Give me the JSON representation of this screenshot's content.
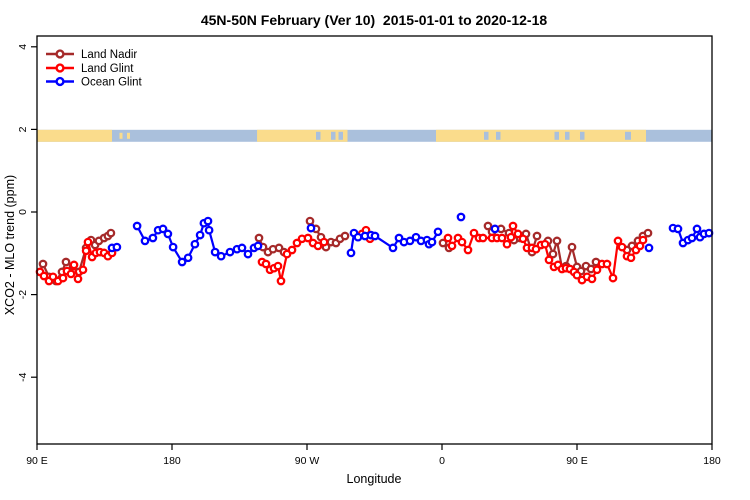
{
  "title": "45N-50N February (Ver 10)  2015-01-01 to 2020-12-18",
  "chart_data": {
    "type": "line",
    "title": "45N-50N February (Ver 10)  2015-01-01 to 2020-12-18",
    "xlabel": "Longitude",
    "ylabel": "XCO2 - MLO trend (ppm)",
    "x_axis": {
      "note": "x measured in degrees eastward from 90E; axis wraps 90E>180>90W>0>90E>180, total span 450 deg",
      "range_deg": [
        0,
        450
      ],
      "ticks": [
        {
          "deg": 0,
          "label": "90 E"
        },
        {
          "deg": 90,
          "label": "180"
        },
        {
          "deg": 180,
          "label": "90 W"
        },
        {
          "deg": 270,
          "label": "0"
        },
        {
          "deg": 360,
          "label": "90 E"
        },
        {
          "deg": 450,
          "label": "180"
        }
      ]
    },
    "y_axis": {
      "range": [
        -5.7,
        4.3
      ],
      "ticks": [
        4,
        2,
        0,
        -2,
        -4
      ],
      "grid": false
    },
    "legend": {
      "position": "top-left",
      "entries": [
        "Land Nadir",
        "Land Glint",
        "Ocean Glint"
      ]
    },
    "series": [
      {
        "name": "Land Nadir",
        "color": "#A52A2A",
        "segments": [
          [
            [
              4,
              -1.26
            ],
            [
              8,
              -1.57
            ],
            [
              12.7,
              -1.67
            ],
            [
              16.7,
              -1.45
            ],
            [
              19.3,
              -1.21
            ],
            [
              24,
              -1.31
            ],
            [
              28,
              -1.45
            ],
            [
              32.7,
              -0.87
            ],
            [
              36,
              -0.68
            ],
            [
              38.7,
              -0.8
            ],
            [
              41.3,
              -0.7
            ],
            [
              44.7,
              -0.63
            ],
            [
              47.3,
              -0.58
            ],
            [
              49.3,
              -0.51
            ]
          ],
          [
            [
              148,
              -0.63
            ],
            [
              150.7,
              -0.85
            ],
            [
              154,
              -0.97
            ],
            [
              157.3,
              -0.9
            ],
            [
              161.3,
              -0.87
            ],
            [
              164.7,
              -0.97
            ]
          ],
          [
            [
              182,
              -0.22
            ],
            [
              186,
              -0.41
            ],
            [
              189.3,
              -0.61
            ],
            [
              192.7,
              -0.85
            ],
            [
              196,
              -0.73
            ],
            [
              199.3,
              -0.75
            ],
            [
              202,
              -0.65
            ],
            [
              205.3,
              -0.58
            ]
          ],
          [
            [
              270.7,
              -0.75
            ],
            [
              274.7,
              -0.87
            ]
          ],
          [
            [
              300.7,
              -0.34
            ],
            [
              303.3,
              -0.48
            ],
            [
              309.3,
              -0.41
            ],
            [
              314.7,
              -0.51
            ],
            [
              318,
              -0.68
            ],
            [
              322,
              -0.63
            ],
            [
              326,
              -0.53
            ],
            [
              330,
              -0.97
            ],
            [
              333.3,
              -0.58
            ]
          ],
          [
            [
              340.7,
              -0.7
            ],
            [
              344,
              -1.02
            ],
            [
              346.7,
              -0.7
            ],
            [
              350,
              -1.36
            ],
            [
              352.7,
              -1.31
            ],
            [
              356.7,
              -0.85
            ],
            [
              360,
              -1.33
            ],
            [
              362.7,
              -1.43
            ],
            [
              366,
              -1.31
            ],
            [
              369.3,
              -1.38
            ],
            [
              372.7,
              -1.21
            ]
          ],
          [
            [
              393.3,
              -0.92
            ],
            [
              396.7,
              -0.82
            ],
            [
              400.7,
              -0.7
            ],
            [
              404,
              -0.58
            ],
            [
              407.3,
              -0.51
            ]
          ]
        ]
      },
      {
        "name": "Land Glint",
        "color": "#FF0000",
        "segments": [
          [
            [
              2,
              -1.45
            ],
            [
              4.7,
              -1.55
            ],
            [
              8,
              -1.67
            ],
            [
              10.7,
              -1.57
            ],
            [
              14,
              -1.67
            ],
            [
              17.3,
              -1.6
            ],
            [
              20,
              -1.43
            ],
            [
              22.7,
              -1.5
            ],
            [
              24.7,
              -1.28
            ],
            [
              27.3,
              -1.62
            ],
            [
              30.7,
              -1.4
            ],
            [
              32.7,
              -0.94
            ],
            [
              34,
              -0.73
            ],
            [
              36.7,
              -1.09
            ],
            [
              39.3,
              -0.99
            ],
            [
              42,
              -0.97
            ],
            [
              44.7,
              -0.99
            ],
            [
              47.3,
              -1.07
            ],
            [
              50,
              -0.99
            ]
          ],
          [
            [
              150,
              -1.21
            ],
            [
              152.7,
              -1.26
            ],
            [
              155.3,
              -1.4
            ],
            [
              158,
              -1.36
            ],
            [
              160.7,
              -1.31
            ],
            [
              162.7,
              -1.67
            ],
            [
              166.7,
              -1.02
            ],
            [
              170,
              -0.92
            ],
            [
              173.3,
              -0.75
            ],
            [
              176.7,
              -0.65
            ],
            [
              180.7,
              -0.63
            ],
            [
              184,
              -0.75
            ],
            [
              187.3,
              -0.82
            ],
            [
              191.3,
              -0.73
            ]
          ],
          [
            [
              216.7,
              -0.53
            ],
            [
              219.3,
              -0.44
            ],
            [
              222,
              -0.65
            ]
          ],
          [
            [
              274,
              -0.63
            ],
            [
              276.7,
              -0.82
            ],
            [
              280.7,
              -0.63
            ],
            [
              283.3,
              -0.73
            ],
            [
              287.3,
              -0.92
            ],
            [
              291.3,
              -0.51
            ],
            [
              294.7,
              -0.63
            ],
            [
              297.3,
              -0.63
            ],
            [
              303.3,
              -0.63
            ],
            [
              306.7,
              -0.63
            ],
            [
              310,
              -0.63
            ],
            [
              313.3,
              -0.78
            ],
            [
              316,
              -0.61
            ],
            [
              317.3,
              -0.34
            ],
            [
              320.7,
              -0.53
            ],
            [
              324,
              -0.65
            ],
            [
              326.7,
              -0.87
            ],
            [
              330,
              -0.87
            ],
            [
              332.7,
              -0.9
            ],
            [
              336,
              -0.8
            ],
            [
              338.7,
              -0.78
            ],
            [
              341.3,
              -1.16
            ],
            [
              344.7,
              -1.33
            ],
            [
              347.3,
              -1.28
            ],
            [
              350,
              -1.38
            ],
            [
              352.7,
              -1.36
            ],
            [
              355.3,
              -1.38
            ],
            [
              358,
              -1.45
            ],
            [
              360,
              -1.53
            ],
            [
              363.3,
              -1.65
            ],
            [
              366.7,
              -1.57
            ],
            [
              370,
              -1.62
            ],
            [
              373.3,
              -1.4
            ],
            [
              376.7,
              -1.26
            ],
            [
              380,
              -1.26
            ],
            [
              384,
              -1.6
            ],
            [
              387.3,
              -0.7
            ],
            [
              390,
              -0.85
            ],
            [
              393.3,
              -1.07
            ],
            [
              396,
              -1.11
            ],
            [
              399.3,
              -0.92
            ],
            [
              402,
              -0.82
            ],
            [
              404,
              -0.68
            ]
          ]
        ]
      },
      {
        "name": "Ocean Glint",
        "color": "#0000FF",
        "segments": [
          [
            [
              50,
              -0.87
            ],
            [
              53.3,
              -0.85
            ]
          ],
          [
            [
              66.7,
              -0.34
            ],
            [
              72,
              -0.7
            ],
            [
              77.3,
              -0.63
            ],
            [
              80.7,
              -0.44
            ],
            [
              84,
              -0.41
            ],
            [
              87.3,
              -0.53
            ],
            [
              90.7,
              -0.85
            ],
            [
              96.7,
              -1.21
            ],
            [
              100.7,
              -1.11
            ],
            [
              105.3,
              -0.78
            ],
            [
              108.7,
              -0.56
            ],
            [
              111.3,
              -0.27
            ],
            [
              114,
              -0.22
            ],
            [
              114.7,
              -0.44
            ],
            [
              118.7,
              -0.97
            ],
            [
              122.7,
              -1.07
            ],
            [
              128.7,
              -0.97
            ],
            [
              133.3,
              -0.9
            ],
            [
              136.7,
              -0.87
            ],
            [
              140.7,
              -1.02
            ],
            [
              144.7,
              -0.87
            ],
            [
              147.3,
              -0.82
            ]
          ],
          [
            [
              182.7,
              -0.39
            ]
          ],
          [
            [
              209.3,
              -0.99
            ],
            [
              211.3,
              -0.51
            ],
            [
              214,
              -0.61
            ],
            [
              218.7,
              -0.58
            ],
            [
              222.7,
              -0.56
            ],
            [
              225.3,
              -0.58
            ],
            [
              237.3,
              -0.87
            ],
            [
              241.3,
              -0.63
            ],
            [
              244.7,
              -0.73
            ],
            [
              248.7,
              -0.7
            ],
            [
              252.7,
              -0.61
            ],
            [
              256,
              -0.7
            ],
            [
              260,
              -0.68
            ],
            [
              261.3,
              -0.78
            ],
            [
              263.3,
              -0.73
            ],
            [
              267.3,
              -0.48
            ]
          ],
          [
            [
              282.7,
              -0.12
            ]
          ],
          [
            [
              305.3,
              -0.41
            ]
          ],
          [
            [
              408,
              -0.87
            ]
          ],
          [
            [
              424,
              -0.39
            ],
            [
              427.3,
              -0.41
            ],
            [
              430.7,
              -0.75
            ],
            [
              434,
              -0.68
            ],
            [
              436.7,
              -0.63
            ],
            [
              440,
              -0.41
            ],
            [
              442,
              -0.61
            ],
            [
              444.7,
              -0.53
            ],
            [
              448,
              -0.51
            ]
          ]
        ]
      }
    ],
    "map_strip": {
      "description": "world coastline reference band drawn across the plot near y = 2 ppm",
      "land_color": "#FADC8C",
      "ocean_color": "#AAC0DC",
      "value_top": 1.99,
      "value_bottom": 1.7,
      "land_segments_deg": [
        [
          0,
          50
        ],
        [
          146.7,
          207
        ],
        [
          266,
          406
        ]
      ],
      "inland_water_deg": [
        [
          186,
          189
        ],
        [
          196,
          199
        ],
        [
          201,
          204
        ],
        [
          298,
          301
        ],
        [
          306,
          309
        ],
        [
          345,
          348
        ],
        [
          352,
          355
        ],
        [
          362,
          365
        ],
        [
          392,
          396
        ]
      ],
      "island_specks_deg": [
        [
          55,
          57
        ],
        [
          60,
          62
        ]
      ]
    }
  }
}
